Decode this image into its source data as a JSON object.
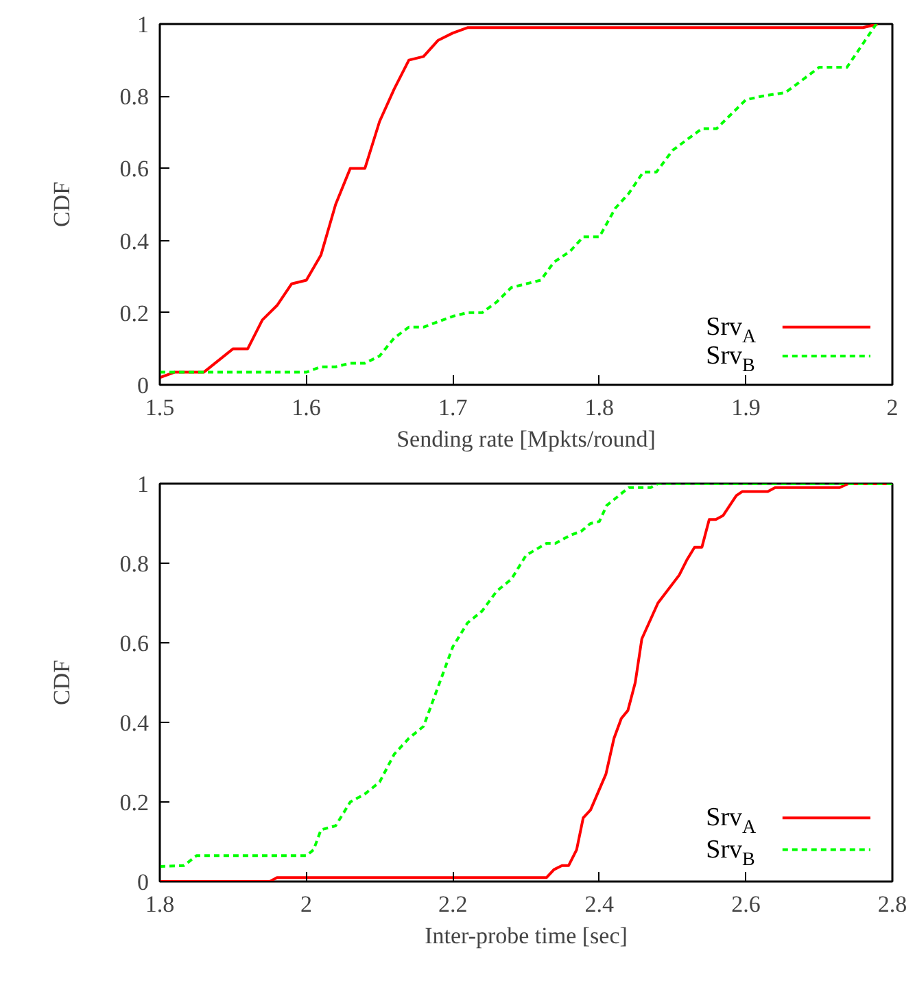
{
  "chart_data": [
    {
      "type": "line",
      "xlabel": "Sending rate [Mpkts/round]",
      "ylabel": "CDF",
      "xlim": [
        1.5,
        2
      ],
      "xticks": [
        1.5,
        1.6,
        1.7,
        1.8,
        1.9,
        2
      ],
      "ylim": [
        0,
        1
      ],
      "yticks": [
        0,
        0.2,
        0.4,
        0.6,
        0.8,
        1
      ],
      "grid": false,
      "legend": "bottom right",
      "marker": "none",
      "series": [
        {
          "name": "Srv$_{A}$",
          "color": "#ff0000",
          "line_style": "solid",
          "x": [
            1.5,
            1.51,
            1.53,
            1.55,
            1.56,
            1.57,
            1.58,
            1.59,
            1.6,
            1.61,
            1.62,
            1.63,
            1.64,
            1.65,
            1.66,
            1.67,
            1.68,
            1.69,
            1.7,
            1.71,
            1.98,
            1.99
          ],
          "values": [
            0.02,
            0.035,
            0.035,
            0.1,
            0.1,
            0.18,
            0.22,
            0.28,
            0.29,
            0.36,
            0.5,
            0.6,
            0.6,
            0.73,
            0.82,
            0.9,
            0.91,
            0.955,
            0.975,
            0.99,
            0.99,
            1.0
          ]
        },
        {
          "name": "Srv$_{B}$",
          "color": "#00ff00",
          "line_style": "dashed",
          "x": [
            1.5,
            1.6,
            1.61,
            1.62,
            1.63,
            1.64,
            1.65,
            1.66,
            1.67,
            1.68,
            1.7,
            1.71,
            1.72,
            1.73,
            1.74,
            1.76,
            1.769,
            1.78,
            1.789,
            1.8,
            1.811,
            1.82,
            1.83,
            1.839,
            1.85,
            1.86,
            1.87,
            1.88,
            1.89,
            1.9,
            1.911,
            1.927,
            1.937,
            1.95,
            1.969,
            1.989
          ],
          "values": [
            0.035,
            0.035,
            0.05,
            0.05,
            0.06,
            0.06,
            0.08,
            0.13,
            0.16,
            0.16,
            0.19,
            0.2,
            0.2,
            0.23,
            0.27,
            0.29,
            0.34,
            0.37,
            0.41,
            0.41,
            0.49,
            0.53,
            0.59,
            0.59,
            0.65,
            0.68,
            0.71,
            0.71,
            0.75,
            0.79,
            0.8,
            0.81,
            0.84,
            0.88,
            0.88,
            1.0
          ]
        }
      ]
    },
    {
      "type": "line",
      "xlabel": "Inter-probe time [sec]",
      "ylabel": "CDF",
      "xlim": [
        1.8,
        2.8
      ],
      "xticks": [
        1.8,
        2,
        2.2,
        2.4,
        2.6,
        2.8
      ],
      "ylim": [
        0,
        1
      ],
      "yticks": [
        0,
        0.2,
        0.4,
        0.6,
        0.8,
        1
      ],
      "grid": false,
      "legend": "bottom right",
      "marker": "none",
      "series": [
        {
          "name": "Srv$_{A}$",
          "color": "#ff0000",
          "line_style": "solid",
          "x": [
            1.8,
            1.95,
            1.96,
            2.328,
            2.338,
            2.349,
            2.358,
            2.369,
            2.378,
            2.388,
            2.409,
            2.42,
            2.43,
            2.439,
            2.449,
            2.458,
            2.48,
            2.509,
            2.52,
            2.53,
            2.54,
            2.55,
            2.559,
            2.569,
            2.587,
            2.595,
            2.63,
            2.64,
            2.728,
            2.74,
            2.8
          ],
          "values": [
            0,
            0,
            0.01,
            0.01,
            0.03,
            0.04,
            0.04,
            0.08,
            0.16,
            0.18,
            0.27,
            0.36,
            0.41,
            0.43,
            0.5,
            0.61,
            0.7,
            0.77,
            0.81,
            0.84,
            0.84,
            0.91,
            0.91,
            0.92,
            0.97,
            0.98,
            0.98,
            0.99,
            0.99,
            1.0,
            1.0
          ]
        },
        {
          "name": "Srv$_{B}$",
          "color": "#00ff00",
          "line_style": "dashed",
          "x": [
            1.8,
            1.833,
            1.85,
            2.0,
            2.01,
            2.02,
            2.04,
            2.06,
            2.08,
            2.1,
            2.12,
            2.14,
            2.16,
            2.18,
            2.2,
            2.22,
            2.24,
            2.26,
            2.28,
            2.3,
            2.328,
            2.34,
            2.36,
            2.375,
            2.388,
            2.4,
            2.41,
            2.44,
            2.47,
            2.48,
            2.8
          ],
          "values": [
            0.038,
            0.04,
            0.065,
            0.065,
            0.08,
            0.13,
            0.14,
            0.2,
            0.22,
            0.25,
            0.32,
            0.36,
            0.39,
            0.49,
            0.59,
            0.65,
            0.68,
            0.73,
            0.76,
            0.82,
            0.85,
            0.85,
            0.87,
            0.88,
            0.9,
            0.905,
            0.945,
            0.99,
            0.99,
            1.0,
            1.0
          ]
        }
      ]
    }
  ]
}
